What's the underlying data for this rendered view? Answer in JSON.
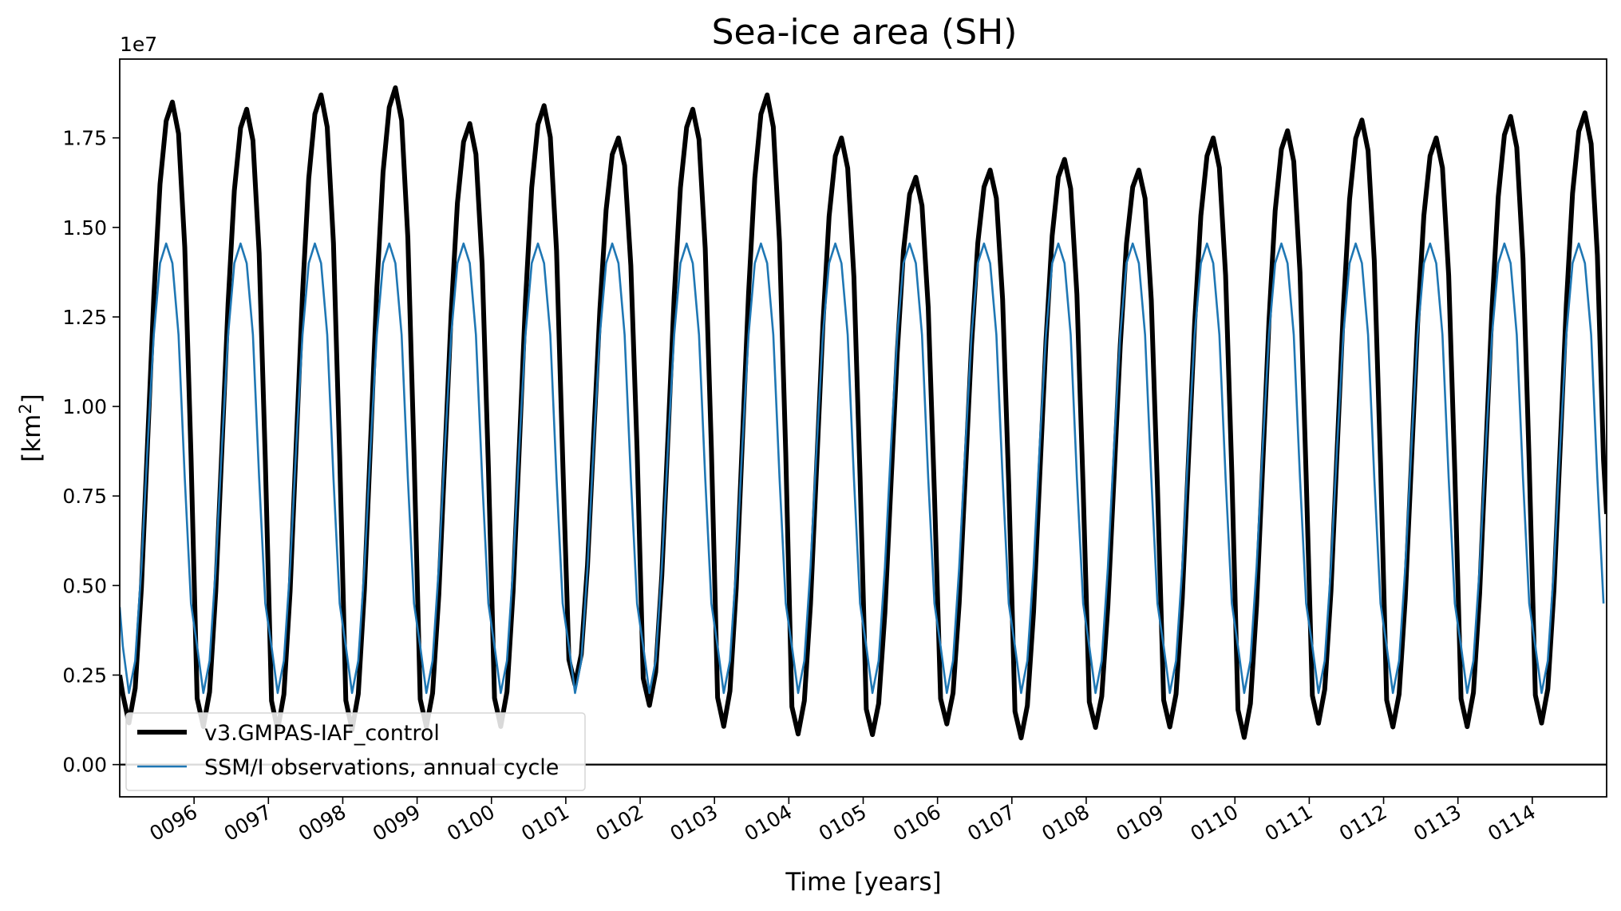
{
  "chart_data": {
    "type": "line",
    "title": "Sea-ice area (SH)",
    "xlabel": "Time [years]",
    "ylabel": "[km",
    "ylabel_sup": "2",
    "ylabel_close": "]",
    "y_offset_label": "1e7",
    "y_scale": 10000000,
    "xlim": [
      95,
      115
    ],
    "ylim": [
      -0.09,
      1.97
    ],
    "yticks": [
      0.0,
      0.25,
      0.5,
      0.75,
      1.0,
      1.25,
      1.5,
      1.75
    ],
    "ytick_labels": [
      "0.00",
      "0.25",
      "0.50",
      "0.75",
      "1.00",
      "1.25",
      "1.50",
      "1.75"
    ],
    "xticks": [
      96,
      97,
      98,
      99,
      100,
      101,
      102,
      103,
      104,
      105,
      106,
      107,
      108,
      109,
      110,
      111,
      112,
      113,
      114
    ],
    "xtick_labels": [
      "0096",
      "0097",
      "0098",
      "0099",
      "0100",
      "0101",
      "0102",
      "0103",
      "0104",
      "0105",
      "0106",
      "0107",
      "0108",
      "0109",
      "0110",
      "0111",
      "0112",
      "0113",
      "0114"
    ],
    "zero_line": true,
    "grid": false,
    "legend_position": "lower-left",
    "series": [
      {
        "name": "v3.GMPAS-IAF_control",
        "color": "#000000",
        "monthly_cycle_shape": [
          0.06,
          0.015,
          0.07,
          0.23,
          0.46,
          0.69,
          0.87,
          0.97,
          1.0,
          0.95,
          0.77,
          0.44
        ],
        "annual_max": [
          1.85,
          1.83,
          1.87,
          1.89,
          1.79,
          1.84,
          1.75,
          1.83,
          1.87,
          1.75,
          1.64,
          1.66,
          1.69,
          1.66,
          1.75,
          1.77,
          1.8,
          1.75,
          1.81,
          1.82
        ],
        "annual_min": [
          0.09,
          0.08,
          0.07,
          0.07,
          0.08,
          0.08,
          0.2,
          0.14,
          0.08,
          0.06,
          0.06,
          0.09,
          0.05,
          0.08,
          0.08,
          0.05,
          0.09,
          0.08,
          0.08,
          0.09
        ],
        "line_end_value": 0.7
      },
      {
        "name": "SSM/I observations, annual cycle",
        "color": "#1f77b4",
        "monthly_values": [
          0.33,
          0.2,
          0.29,
          0.55,
          0.89,
          1.2,
          1.4,
          1.455,
          1.4,
          1.2,
          0.8,
          0.45
        ]
      }
    ]
  }
}
